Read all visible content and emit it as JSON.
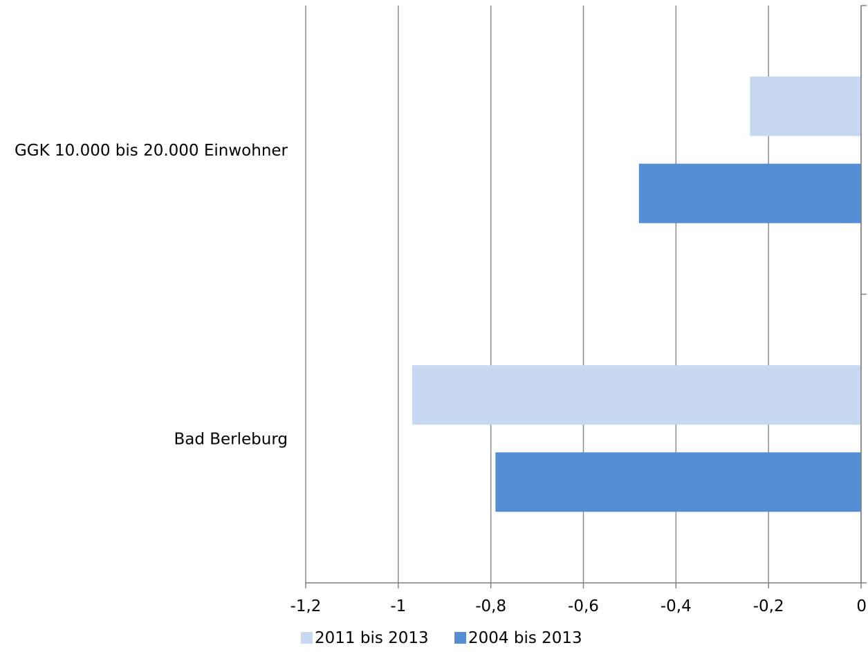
{
  "chart_data": {
    "type": "bar",
    "orientation": "horizontal",
    "categories": [
      "GGK 10.000 bis 20.000 Einwohner",
      "Bad Berleburg"
    ],
    "series": [
      {
        "name": "2011 bis 2013",
        "values": [
          -0.24,
          -0.97
        ],
        "color": "#c6d9f1"
      },
      {
        "name": "2004 bis 2013",
        "values": [
          -0.48,
          -0.79
        ],
        "color": "#558ed5"
      }
    ],
    "x_ticks": [
      "-1,2",
      "-1",
      "-0,8",
      "-0,6",
      "-0,4",
      "-0,2",
      "0"
    ],
    "xlim": [
      -1.2,
      0
    ],
    "grid": "vertical",
    "legend_position": "bottom"
  }
}
